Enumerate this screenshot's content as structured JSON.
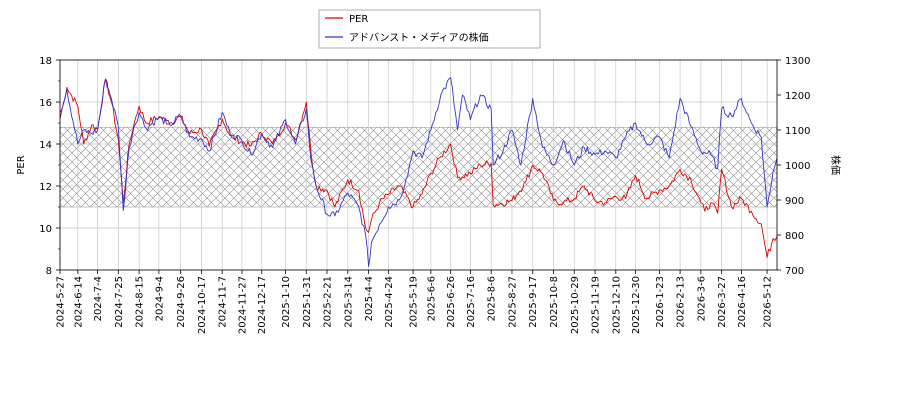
{
  "chart_data": {
    "type": "line",
    "grid": true,
    "legend_placement": "top-center",
    "ylabel_left": "PER",
    "ylabel_right": "株価",
    "ylim_left": [
      8,
      18
    ],
    "ylim_right": [
      700,
      1300
    ],
    "yticks_left": [
      8,
      10,
      12,
      14,
      16,
      18
    ],
    "yticks_right": [
      700,
      800,
      900,
      1000,
      1100,
      1200,
      1300
    ],
    "x_range": [
      "2024-05-27",
      "2026-05-22"
    ],
    "xtick_labels": [
      "2024-5-27",
      "2024-6-14",
      "2024-7-4",
      "2024-7-25",
      "2024-8-15",
      "2024-9-4",
      "2024-9-26",
      "2024-10-17",
      "2024-11-7",
      "2024-11-27",
      "2024-12-17",
      "2025-1-10",
      "2025-1-31",
      "2025-2-21",
      "2025-3-14",
      "2025-4-4",
      "2025-4-24",
      "2025-5-19",
      "2025-6-6",
      "2025-6-26",
      "2025-7-16",
      "2025-8-6",
      "2025-8-27",
      "2025-9-17",
      "2025-10-8",
      "2025-10-29",
      "2025-11-19",
      "2025-12-10",
      "2025-12-30",
      "2026-1-23",
      "2026-2-13",
      "2026-3-6",
      "2026-3-27",
      "2026-4-16",
      "2026-5-12"
    ],
    "band": {
      "axis": "left",
      "from": 11.0,
      "to": 14.8,
      "pattern": "crosshatch"
    },
    "series": [
      {
        "name": "PER",
        "axis": "left",
        "color": "#dd0000",
        "x": [
          "2024-5-27",
          "2024-6-3",
          "2024-6-14",
          "2024-6-20",
          "2024-6-28",
          "2024-7-4",
          "2024-7-12",
          "2024-7-18",
          "2024-7-25",
          "2024-7-30",
          "2024-8-5",
          "2024-8-10",
          "2024-8-15",
          "2024-8-22",
          "2024-9-4",
          "2024-9-15",
          "2024-9-26",
          "2024-10-5",
          "2024-10-17",
          "2024-10-25",
          "2024-11-7",
          "2024-11-15",
          "2024-11-27",
          "2024-12-6",
          "2024-12-17",
          "2024-12-28",
          "2025-1-10",
          "2025-1-20",
          "2025-1-31",
          "2025-2-5",
          "2025-2-10",
          "2025-2-21",
          "2025-3-1",
          "2025-3-14",
          "2025-3-25",
          "2025-4-1",
          "2025-4-4",
          "2025-4-7",
          "2025-4-15",
          "2025-4-24",
          "2025-5-5",
          "2025-5-19",
          "2025-5-28",
          "2025-6-6",
          "2025-6-16",
          "2025-6-26",
          "2025-7-3",
          "2025-7-16",
          "2025-7-26",
          "2025-8-6",
          "2025-8-8",
          "2025-8-27",
          "2025-9-10",
          "2025-9-17",
          "2025-9-27",
          "2025-10-8",
          "2025-10-18",
          "2025-10-29",
          "2025-11-8",
          "2025-11-19",
          "2025-11-29",
          "2025-12-10",
          "2025-12-20",
          "2025-12-30",
          "2026-1-10",
          "2026-1-23",
          "2026-2-2",
          "2026-2-13",
          "2026-2-24",
          "2026-3-6",
          "2026-3-10",
          "2026-3-16",
          "2026-3-23",
          "2026-3-27",
          "2026-4-6",
          "2026-4-16",
          "2026-4-26",
          "2026-5-6",
          "2026-5-12",
          "2026-5-18",
          "2026-5-22"
        ],
        "values": [
          15.2,
          16.7,
          15.8,
          14.0,
          14.9,
          14.7,
          17.1,
          16.0,
          14.2,
          11.2,
          14.0,
          15.0,
          15.8,
          15.0,
          15.3,
          15.0,
          15.3,
          14.5,
          14.7,
          13.9,
          15.2,
          14.4,
          14.1,
          13.9,
          14.5,
          14.0,
          15.0,
          14.2,
          16.0,
          13.5,
          12.0,
          11.8,
          11.0,
          12.3,
          11.8,
          10.0,
          9.8,
          10.4,
          11.2,
          11.6,
          12.0,
          11.0,
          11.6,
          12.6,
          13.4,
          14.0,
          12.4,
          12.6,
          13.0,
          13.1,
          11.1,
          11.3,
          12.2,
          13.0,
          12.6,
          11.3,
          11.2,
          11.4,
          12.0,
          11.3,
          11.2,
          11.5,
          11.4,
          12.5,
          11.4,
          11.8,
          12.0,
          12.8,
          12.3,
          11.2,
          10.8,
          11.2,
          10.7,
          12.8,
          11.0,
          11.4,
          10.8,
          10.2,
          8.6,
          9.5,
          9.6
        ]
      },
      {
        "name": "アドバンスト・メディアの株価",
        "axis": "right",
        "color": "#3333cc",
        "x": [
          "2024-5-27",
          "2024-6-3",
          "2024-6-14",
          "2024-6-20",
          "2024-6-28",
          "2024-7-4",
          "2024-7-12",
          "2024-7-18",
          "2024-7-25",
          "2024-7-30",
          "2024-8-5",
          "2024-8-10",
          "2024-8-15",
          "2024-8-22",
          "2024-9-4",
          "2024-9-15",
          "2024-9-26",
          "2024-10-5",
          "2024-10-17",
          "2024-10-25",
          "2024-11-7",
          "2024-11-15",
          "2024-11-27",
          "2024-12-6",
          "2024-12-17",
          "2024-12-28",
          "2025-1-10",
          "2025-1-20",
          "2025-1-31",
          "2025-2-5",
          "2025-2-10",
          "2025-2-21",
          "2025-3-1",
          "2025-3-14",
          "2025-3-25",
          "2025-4-1",
          "2025-4-4",
          "2025-4-7",
          "2025-4-15",
          "2025-4-24",
          "2025-5-5",
          "2025-5-12",
          "2025-5-19",
          "2025-5-28",
          "2025-6-6",
          "2025-6-16",
          "2025-6-26",
          "2025-7-3",
          "2025-7-8",
          "2025-7-16",
          "2025-7-26",
          "2025-8-6",
          "2025-8-8",
          "2025-8-18",
          "2025-8-27",
          "2025-9-5",
          "2025-9-17",
          "2025-9-27",
          "2025-10-8",
          "2025-10-18",
          "2025-10-29",
          "2025-11-8",
          "2025-11-19",
          "2025-11-29",
          "2025-12-10",
          "2025-12-20",
          "2025-12-30",
          "2026-1-10",
          "2026-1-23",
          "2026-2-2",
          "2026-2-13",
          "2026-2-24",
          "2026-3-6",
          "2026-3-16",
          "2026-3-23",
          "2026-3-27",
          "2026-4-6",
          "2026-4-16",
          "2026-4-26",
          "2026-5-6",
          "2026-5-12",
          "2026-5-18",
          "2026-5-22"
        ],
        "values": [
          1150,
          1215,
          1060,
          1100,
          1090,
          1100,
          1245,
          1190,
          1110,
          870,
          1050,
          1110,
          1150,
          1105,
          1135,
          1115,
          1140,
          1080,
          1075,
          1040,
          1150,
          1090,
          1070,
          1030,
          1090,
          1050,
          1130,
          1060,
          1160,
          1010,
          940,
          860,
          855,
          920,
          880,
          800,
          710,
          780,
          830,
          880,
          900,
          960,
          1040,
          1020,
          1100,
          1200,
          1250,
          1100,
          1200,
          1130,
          1200,
          1160,
          1000,
          1040,
          1100,
          1000,
          1190,
          1050,
          1000,
          1070,
          1000,
          1050,
          1030,
          1040,
          1020,
          1080,
          1120,
          1060,
          1080,
          1020,
          1190,
          1110,
          1040,
          1030,
          990,
          1160,
          1140,
          1190,
          1120,
          1080,
          880,
          980,
          1020
        ]
      }
    ]
  }
}
